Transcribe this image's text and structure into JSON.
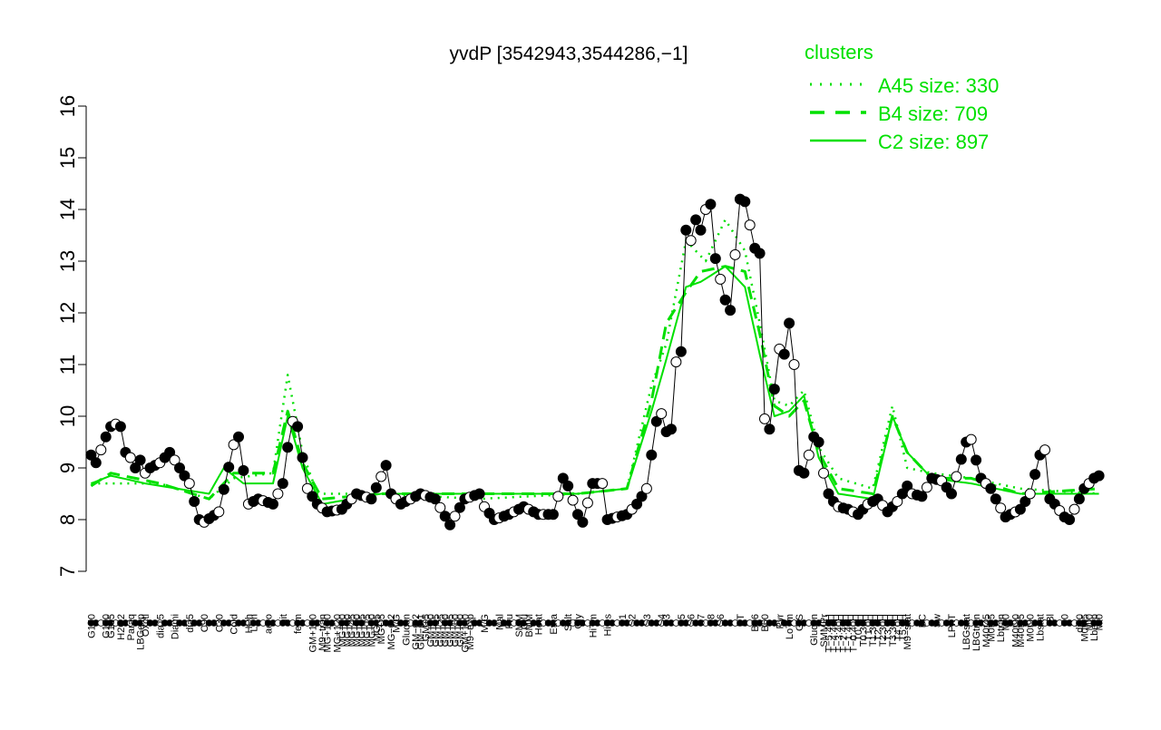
{
  "chart_data": {
    "type": "line",
    "title": "yvdP [3542943,3544286,−1]",
    "xlabel": "",
    "ylabel": "",
    "ylim": [
      7,
      16
    ],
    "yticks": [
      7,
      8,
      9,
      10,
      11,
      12,
      13,
      14,
      15,
      16
    ],
    "grid": false,
    "legend": {
      "title": "clusters",
      "placement": "top-right",
      "entries": [
        {
          "label": "A45 size: 330",
          "style": "dotted"
        },
        {
          "label": "B4 size: 709",
          "style": "dashed"
        },
        {
          "label": "C2 size: 897",
          "style": "solid"
        }
      ]
    },
    "colors": {
      "clusters": "#00e000",
      "points": "#000000",
      "axis": "#000000"
    },
    "x_labels": [
      {
        "i": 1,
        "t": "G150"
      },
      {
        "i": 4,
        "t": "G180"
      },
      {
        "i": 5,
        "t": "G135"
      },
      {
        "i": 7,
        "t": "H2O2"
      },
      {
        "i": 9,
        "t": "Paraq"
      },
      {
        "i": 11,
        "t": "LBGexp"
      },
      {
        "i": 12,
        "t": "Oxctl"
      },
      {
        "i": 15,
        "t": "dia15"
      },
      {
        "i": 18,
        "t": "Diami"
      },
      {
        "i": 21,
        "t": "dia5"
      },
      {
        "i": 24,
        "t": "C90"
      },
      {
        "i": 27,
        "t": "C30"
      },
      {
        "i": 30,
        "t": "Cold"
      },
      {
        "i": 33,
        "t": "HPh"
      },
      {
        "i": 34,
        "t": "LPh"
      },
      {
        "i": 37,
        "t": "aero"
      },
      {
        "i": 40,
        "t": "nit"
      },
      {
        "i": 43,
        "t": "ferm"
      },
      {
        "i": 46,
        "t": "GM+150"
      },
      {
        "i": 48,
        "t": "M9−tran"
      },
      {
        "i": 49,
        "t": "MG+150"
      },
      {
        "i": 51,
        "t": "MG+120"
      },
      {
        "i": 52,
        "t": "MG+90"
      },
      {
        "i": 53,
        "t": "MG+60"
      },
      {
        "i": 54,
        "t": "MG+45"
      },
      {
        "i": 55,
        "t": "MG+30"
      },
      {
        "i": 56,
        "t": "MG+25"
      },
      {
        "i": 57,
        "t": "MG+15"
      },
      {
        "i": 58,
        "t": "MG+10"
      },
      {
        "i": 59,
        "t": "MG+5"
      },
      {
        "i": 60,
        "t": "MG+t5"
      },
      {
        "i": 62,
        "t": "MG−0.2"
      },
      {
        "i": 63,
        "t": "M/G"
      },
      {
        "i": 65,
        "t": "Glucon"
      },
      {
        "i": 67,
        "t": "GM−0.2"
      },
      {
        "i": 68,
        "t": "GM−0.1"
      },
      {
        "i": 69,
        "t": "GM+5"
      },
      {
        "i": 70,
        "t": "GM+10"
      },
      {
        "i": 71,
        "t": "GM+15"
      },
      {
        "i": 72,
        "t": "GM+25"
      },
      {
        "i": 73,
        "t": "GM+30"
      },
      {
        "i": 74,
        "t": "GM+45"
      },
      {
        "i": 75,
        "t": "GM+60"
      },
      {
        "i": 76,
        "t": "GM+90"
      },
      {
        "i": 77,
        "t": "GM+120"
      },
      {
        "i": 78,
        "t": "M9−exp"
      },
      {
        "i": 81,
        "t": "M/G"
      },
      {
        "i": 84,
        "t": "Mal"
      },
      {
        "i": 86,
        "t": "Fru"
      },
      {
        "i": 88,
        "t": "SMM"
      },
      {
        "i": 89,
        "t": "Glu"
      },
      {
        "i": 90,
        "t": "BMM"
      },
      {
        "i": 92,
        "t": "Heat"
      },
      {
        "i": 95,
        "t": "Etha"
      },
      {
        "i": 98,
        "t": "Salt"
      },
      {
        "i": 100,
        "t": "Gly"
      },
      {
        "i": 103,
        "t": "HiTm"
      },
      {
        "i": 106,
        "t": "HiOs"
      },
      {
        "i": 109,
        "t": "S1"
      },
      {
        "i": 111,
        "t": "S2"
      },
      {
        "i": 114,
        "t": "S3"
      },
      {
        "i": 117,
        "t": "S4"
      },
      {
        "i": 118,
        "t": "S3"
      },
      {
        "i": 121,
        "t": "S5"
      },
      {
        "i": 123,
        "t": "S6"
      },
      {
        "i": 125,
        "t": "S7"
      },
      {
        "i": 127,
        "t": "S8"
      },
      {
        "i": 129,
        "t": "S6"
      },
      {
        "i": 133,
        "t": "BT"
      },
      {
        "i": 136,
        "t": "B36"
      },
      {
        "i": 138,
        "t": "B60"
      },
      {
        "i": 141,
        "t": "Pyr"
      },
      {
        "i": 143,
        "t": "LoTm"
      },
      {
        "i": 145,
        "t": "G/S"
      },
      {
        "i": 148,
        "t": "Glucon"
      },
      {
        "i": 150,
        "t": "SMMPr"
      },
      {
        "i": 151,
        "t": "T−5.40H"
      },
      {
        "i": 152,
        "t": "T−4.40H"
      },
      {
        "i": 153,
        "t": "T−3.40H"
      },
      {
        "i": 154,
        "t": "T−2.40H"
      },
      {
        "i": 155,
        "t": "T−1.40H"
      },
      {
        "i": 156,
        "t": "T−0.40H"
      },
      {
        "i": 157,
        "t": "T0.0H"
      },
      {
        "i": 158,
        "t": "T0.30H"
      },
      {
        "i": 159,
        "t": "T1.0H"
      },
      {
        "i": 160,
        "t": "T1.30H"
      },
      {
        "i": 161,
        "t": "T2.0H"
      },
      {
        "i": 162,
        "t": "T2.30H"
      },
      {
        "i": 163,
        "t": "T3.0H"
      },
      {
        "i": 164,
        "t": "T3.30H"
      },
      {
        "i": 165,
        "t": "T4.0H"
      },
      {
        "i": 166,
        "t": "T5.0H"
      },
      {
        "i": 167,
        "t": "M9−stat"
      },
      {
        "i": 170,
        "t": "BC"
      },
      {
        "i": 173,
        "t": "Sw"
      },
      {
        "i": 176,
        "t": "LPhT"
      },
      {
        "i": 179,
        "t": "LBGstat"
      },
      {
        "i": 181,
        "t": "LBGtran"
      },
      {
        "i": 183,
        "t": "M40t45"
      },
      {
        "i": 184,
        "t": "M0t45"
      },
      {
        "i": 186,
        "t": "Lbtran"
      },
      {
        "i": 187,
        "t": "Mt0"
      },
      {
        "i": 189,
        "t": "M40t90"
      },
      {
        "i": 190,
        "t": "M40t45"
      },
      {
        "i": 192,
        "t": "M0t90"
      },
      {
        "i": 194,
        "t": "Lbstat"
      },
      {
        "i": 196,
        "t": "Bl"
      },
      {
        "i": 199,
        "t": "S0"
      },
      {
        "i": 202,
        "t": "dia0"
      },
      {
        "i": 203,
        "t": "M0t45"
      },
      {
        "i": 204,
        "t": "Mt0"
      },
      {
        "i": 205,
        "t": "Lbexp"
      },
      {
        "i": 206,
        "t": "Mt0"
      }
    ],
    "x_range": [
      0,
      207
    ],
    "anchors": {
      "observed": [
        [
          1,
          9.25
        ],
        [
          2,
          9.1
        ],
        [
          4,
          9.6
        ],
        [
          5,
          9.8
        ],
        [
          6,
          9.85
        ],
        [
          7,
          9.8
        ],
        [
          8,
          9.3
        ],
        [
          9,
          9.2
        ],
        [
          10,
          9.0
        ],
        [
          11,
          9.15
        ],
        [
          12,
          8.9
        ],
        [
          13,
          9.0
        ],
        [
          15,
          9.1
        ],
        [
          17,
          9.3
        ],
        [
          19,
          9.0
        ],
        [
          21,
          8.7
        ],
        [
          23,
          8.0
        ],
        [
          24,
          7.95
        ],
        [
          27,
          8.15
        ],
        [
          30,
          9.45
        ],
        [
          31,
          9.6
        ],
        [
          33,
          8.3
        ],
        [
          35,
          8.4
        ],
        [
          38,
          8.3
        ],
        [
          40,
          8.7
        ],
        [
          41,
          9.4
        ],
        [
          42,
          9.9
        ],
        [
          43,
          9.8
        ],
        [
          45,
          8.6
        ],
        [
          47,
          8.3
        ],
        [
          49,
          8.15
        ],
        [
          52,
          8.2
        ],
        [
          55,
          8.5
        ],
        [
          58,
          8.4
        ],
        [
          61,
          9.05
        ],
        [
          62,
          8.5
        ],
        [
          64,
          8.3
        ],
        [
          68,
          8.5
        ],
        [
          71,
          8.4
        ],
        [
          74,
          7.9
        ],
        [
          77,
          8.4
        ],
        [
          80,
          8.5
        ],
        [
          81,
          8.25
        ],
        [
          83,
          8.0
        ],
        [
          86,
          8.1
        ],
        [
          89,
          8.25
        ],
        [
          92,
          8.1
        ],
        [
          95,
          8.1
        ],
        [
          97,
          8.8
        ],
        [
          98,
          8.65
        ],
        [
          100,
          8.1
        ],
        [
          101,
          7.95
        ],
        [
          103,
          8.7
        ],
        [
          105,
          8.7
        ],
        [
          106,
          8.0
        ],
        [
          108,
          8.05
        ],
        [
          110,
          8.1
        ],
        [
          112,
          8.3
        ],
        [
          114,
          8.6
        ],
        [
          116,
          9.9
        ],
        [
          117,
          10.05
        ],
        [
          118,
          9.7
        ],
        [
          119,
          9.75
        ],
        [
          120,
          11.05
        ],
        [
          121,
          11.25
        ],
        [
          122,
          13.6
        ],
        [
          123,
          13.4
        ],
        [
          124,
          13.8
        ],
        [
          125,
          13.6
        ],
        [
          126,
          14.0
        ],
        [
          127,
          14.1
        ],
        [
          128,
          13.05
        ],
        [
          130,
          12.25
        ],
        [
          131,
          12.05
        ],
        [
          133,
          14.2
        ],
        [
          134,
          14.15
        ],
        [
          136,
          13.25
        ],
        [
          137,
          13.15
        ],
        [
          138,
          9.95
        ],
        [
          139,
          9.75
        ],
        [
          141,
          11.3
        ],
        [
          142,
          11.2
        ],
        [
          143,
          11.8
        ],
        [
          144,
          11.0
        ],
        [
          145,
          8.95
        ],
        [
          146,
          8.9
        ],
        [
          147,
          9.25
        ],
        [
          148,
          9.6
        ],
        [
          149,
          9.5
        ],
        [
          150,
          8.9
        ],
        [
          151,
          8.5
        ],
        [
          152,
          8.35
        ],
        [
          153,
          8.25
        ],
        [
          155,
          8.2
        ],
        [
          157,
          8.1
        ],
        [
          159,
          8.3
        ],
        [
          161,
          8.4
        ],
        [
          163,
          8.15
        ],
        [
          165,
          8.35
        ],
        [
          167,
          8.65
        ],
        [
          168,
          8.5
        ],
        [
          170,
          8.45
        ],
        [
          172,
          8.8
        ],
        [
          174,
          8.75
        ],
        [
          176,
          8.5
        ],
        [
          179,
          9.5
        ],
        [
          180,
          9.55
        ],
        [
          181,
          9.15
        ],
        [
          182,
          8.8
        ],
        [
          184,
          8.6
        ],
        [
          185,
          8.4
        ],
        [
          187,
          8.05
        ],
        [
          188,
          8.1
        ],
        [
          190,
          8.2
        ],
        [
          192,
          8.5
        ],
        [
          194,
          9.25
        ],
        [
          195,
          9.35
        ],
        [
          196,
          8.4
        ],
        [
          197,
          8.3
        ],
        [
          199,
          8.05
        ],
        [
          200,
          8.0
        ],
        [
          202,
          8.4
        ],
        [
          203,
          8.6
        ],
        [
          205,
          8.8
        ],
        [
          206,
          8.85
        ]
      ],
      "A45": [
        [
          1,
          8.7
        ],
        [
          15,
          8.7
        ],
        [
          25,
          8.4
        ],
        [
          30,
          8.8
        ],
        [
          38,
          8.9
        ],
        [
          41,
          10.8
        ],
        [
          44,
          9.3
        ],
        [
          47,
          8.5
        ],
        [
          60,
          8.5
        ],
        [
          80,
          8.4
        ],
        [
          100,
          8.5
        ],
        [
          110,
          8.6
        ],
        [
          115,
          10.6
        ],
        [
          118,
          11.4
        ],
        [
          122,
          13.4
        ],
        [
          126,
          13.0
        ],
        [
          130,
          13.8
        ],
        [
          134,
          13.2
        ],
        [
          137,
          11.8
        ],
        [
          140,
          10.3
        ],
        [
          143,
          10.2
        ],
        [
          146,
          10.5
        ],
        [
          149,
          9.4
        ],
        [
          153,
          8.8
        ],
        [
          160,
          8.6
        ],
        [
          164,
          10.2
        ],
        [
          167,
          9.0
        ],
        [
          172,
          8.9
        ],
        [
          180,
          8.8
        ],
        [
          190,
          8.6
        ],
        [
          206,
          8.5
        ]
      ],
      "B4": [
        [
          1,
          8.65
        ],
        [
          5,
          8.9
        ],
        [
          15,
          8.7
        ],
        [
          25,
          8.4
        ],
        [
          30,
          8.9
        ],
        [
          38,
          8.9
        ],
        [
          41,
          10.1
        ],
        [
          44,
          9.1
        ],
        [
          48,
          8.4
        ],
        [
          60,
          8.5
        ],
        [
          80,
          8.5
        ],
        [
          100,
          8.5
        ],
        [
          110,
          8.6
        ],
        [
          115,
          10.3
        ],
        [
          118,
          11.8
        ],
        [
          122,
          12.4
        ],
        [
          125,
          12.8
        ],
        [
          130,
          12.9
        ],
        [
          134,
          12.8
        ],
        [
          137,
          11.6
        ],
        [
          140,
          10.2
        ],
        [
          143,
          10.0
        ],
        [
          146,
          10.3
        ],
        [
          149,
          9.3
        ],
        [
          153,
          8.6
        ],
        [
          160,
          8.5
        ],
        [
          164,
          10.0
        ],
        [
          167,
          9.3
        ],
        [
          172,
          8.8
        ],
        [
          180,
          8.8
        ],
        [
          190,
          8.5
        ],
        [
          206,
          8.6
        ]
      ],
      "C2": [
        [
          1,
          8.7
        ],
        [
          5,
          8.85
        ],
        [
          12,
          8.7
        ],
        [
          25,
          8.5
        ],
        [
          28,
          9.0
        ],
        [
          32,
          8.7
        ],
        [
          38,
          8.7
        ],
        [
          41,
          10.0
        ],
        [
          44,
          9.0
        ],
        [
          48,
          8.3
        ],
        [
          60,
          8.5
        ],
        [
          80,
          8.5
        ],
        [
          100,
          8.5
        ],
        [
          110,
          8.6
        ],
        [
          115,
          10.1
        ],
        [
          118,
          11.1
        ],
        [
          122,
          12.5
        ],
        [
          125,
          12.6
        ],
        [
          130,
          12.9
        ],
        [
          134,
          12.5
        ],
        [
          137,
          11.2
        ],
        [
          140,
          10.0
        ],
        [
          143,
          10.1
        ],
        [
          146,
          10.4
        ],
        [
          149,
          9.2
        ],
        [
          153,
          8.5
        ],
        [
          160,
          8.4
        ],
        [
          164,
          10.0
        ],
        [
          167,
          9.3
        ],
        [
          172,
          8.8
        ],
        [
          180,
          8.7
        ],
        [
          190,
          8.5
        ],
        [
          206,
          8.5
        ]
      ]
    }
  }
}
